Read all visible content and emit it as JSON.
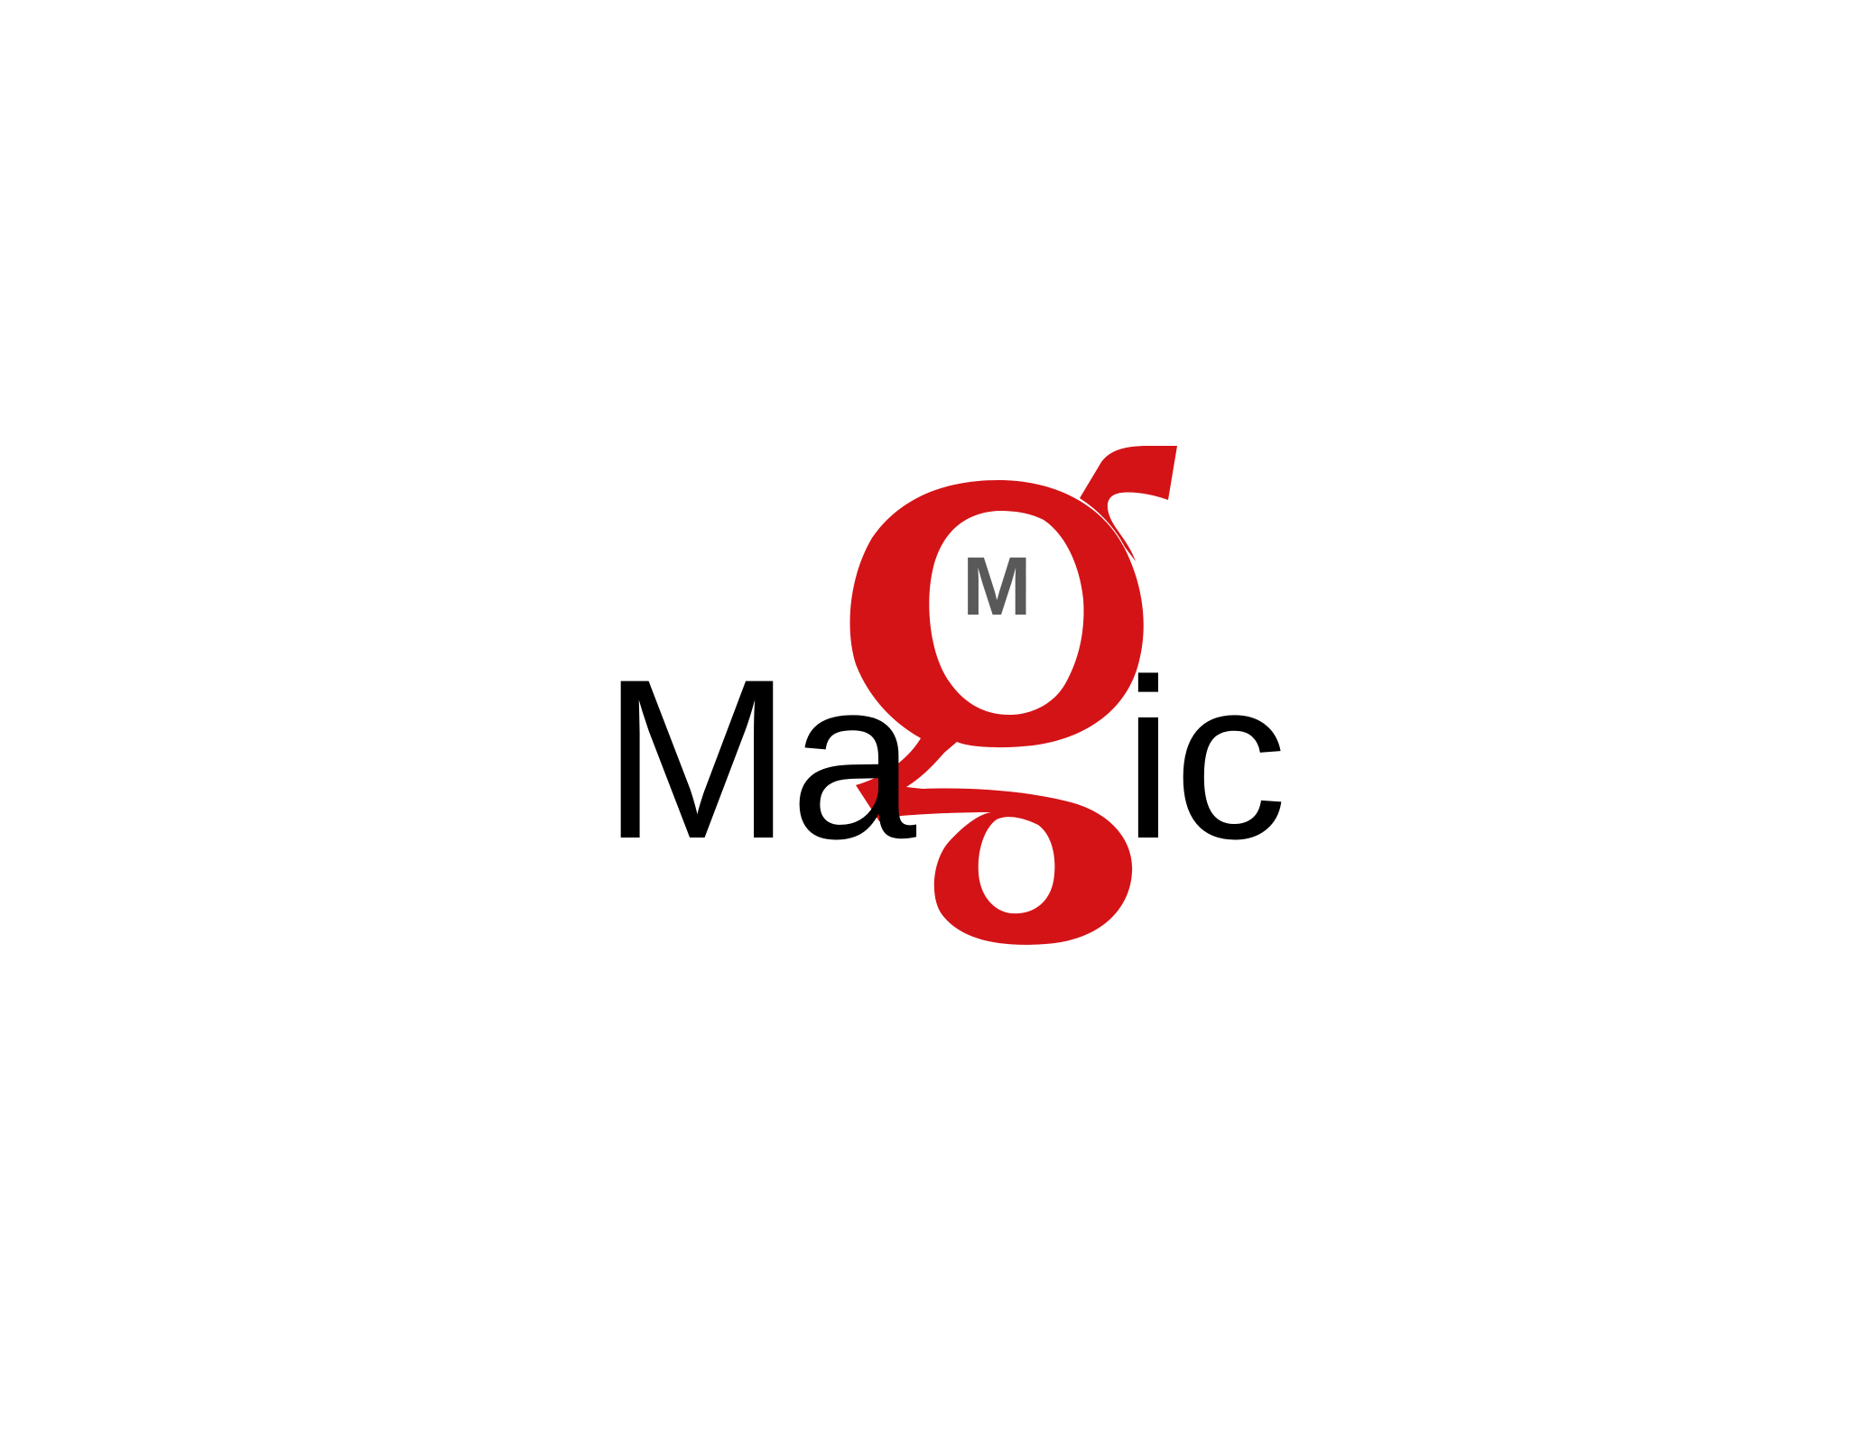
{
  "logo": {
    "left_text": "Ma",
    "center_glyph": "g",
    "right_text": "ic",
    "inner_mark": "M"
  },
  "colors": {
    "background": "#ffffff",
    "text": "#000000",
    "accent": "#d41317",
    "inner_mark": "#595959"
  }
}
